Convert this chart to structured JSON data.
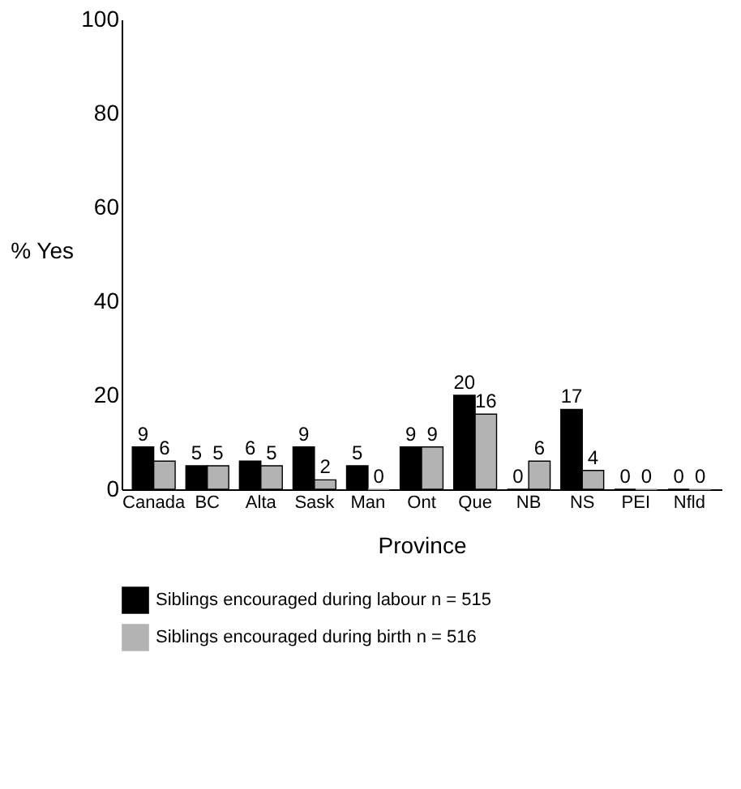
{
  "chart_data": {
    "type": "bar",
    "categories": [
      "Canada",
      "BC",
      "Alta",
      "Sask",
      "Man",
      "Ont",
      "Que",
      "NB",
      "NS",
      "PEI",
      "Nfld"
    ],
    "series": [
      {
        "name": "Siblings encouraged during labour n = 515",
        "color": "#000000",
        "values": [
          9,
          5,
          6,
          9,
          5,
          9,
          20,
          0,
          17,
          0,
          0
        ]
      },
      {
        "name": "Siblings encouraged during birth n = 516",
        "color": "#b3b3b3",
        "values": [
          6,
          5,
          5,
          2,
          0,
          9,
          16,
          6,
          4,
          0,
          0
        ]
      }
    ],
    "xlabel": "Province",
    "ylabel": "% Yes",
    "ylim": [
      0,
      100
    ],
    "yticks": [
      0,
      20,
      40,
      60,
      80,
      100
    ],
    "grid": false,
    "legend": "bottom",
    "data_labels": true
  }
}
